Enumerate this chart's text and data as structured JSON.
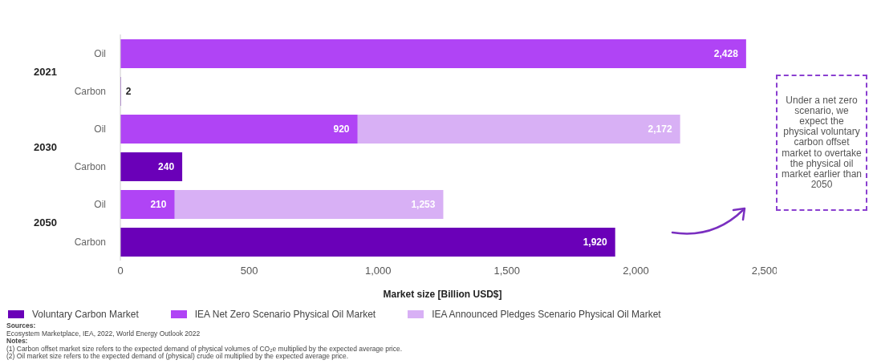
{
  "chart_data": {
    "type": "bar",
    "orientation": "horizontal",
    "categories": [
      "Oil",
      "Carbon",
      "Oil",
      "Carbon",
      "Oil",
      "Carbon"
    ],
    "series": [
      {
        "name": "Voluntary Carbon Market",
        "color": "#6a00b8",
        "values": [
          null,
          2,
          null,
          240,
          null,
          1920
        ],
        "value_labels": [
          null,
          "2",
          null,
          "240",
          null,
          "1,920"
        ]
      },
      {
        "name": "IEA Net Zero Scenario Physical Oil Market",
        "color": "#b044f5",
        "values": [
          2428,
          null,
          920,
          null,
          210,
          null
        ],
        "value_labels": [
          "2,428",
          null,
          "920",
          null,
          "210",
          null
        ]
      },
      {
        "name": "IEA Announced Pledges Scenario Physical Oil Market",
        "color": "#d8b0f5",
        "values": [
          null,
          null,
          2172,
          null,
          1253,
          null
        ],
        "value_labels": [
          null,
          null,
          "2,172",
          null,
          "1,253",
          null
        ]
      }
    ],
    "xlim": [
      0,
      2500
    ],
    "xticks": [
      0,
      {
        "value": 500,
        "label": "500"
      },
      {
        "value": 1000,
        "label": "1,000"
      },
      {
        "value": 1500,
        "label": "1,500"
      },
      {
        "value": 2000,
        "label": "2,000"
      },
      {
        "value": 2500,
        "label": "2,500"
      }
    ],
    "xlabel": "Market size [Billion USD$]",
    "grid": false,
    "legend": "bottom",
    "annotations": [
      "2021",
      "2030",
      "2050",
      "Under a net zero scenario, we expect the physical voluntary carbon offset market to overtake the physical oil market earlier than 2050",
      "Sources:",
      "Ecosystem Marketplace, IEA, 2022, World Energy Outlook 2022",
      "Notes:",
      "(1) Carbon offset market size refers to the expected demand of physical volumes of CO₂e multiplied by the expected average price.",
      "(2) Oil market size refers to the expected demand of (physical) crude oil multiplied by the expected average price."
    ]
  }
}
